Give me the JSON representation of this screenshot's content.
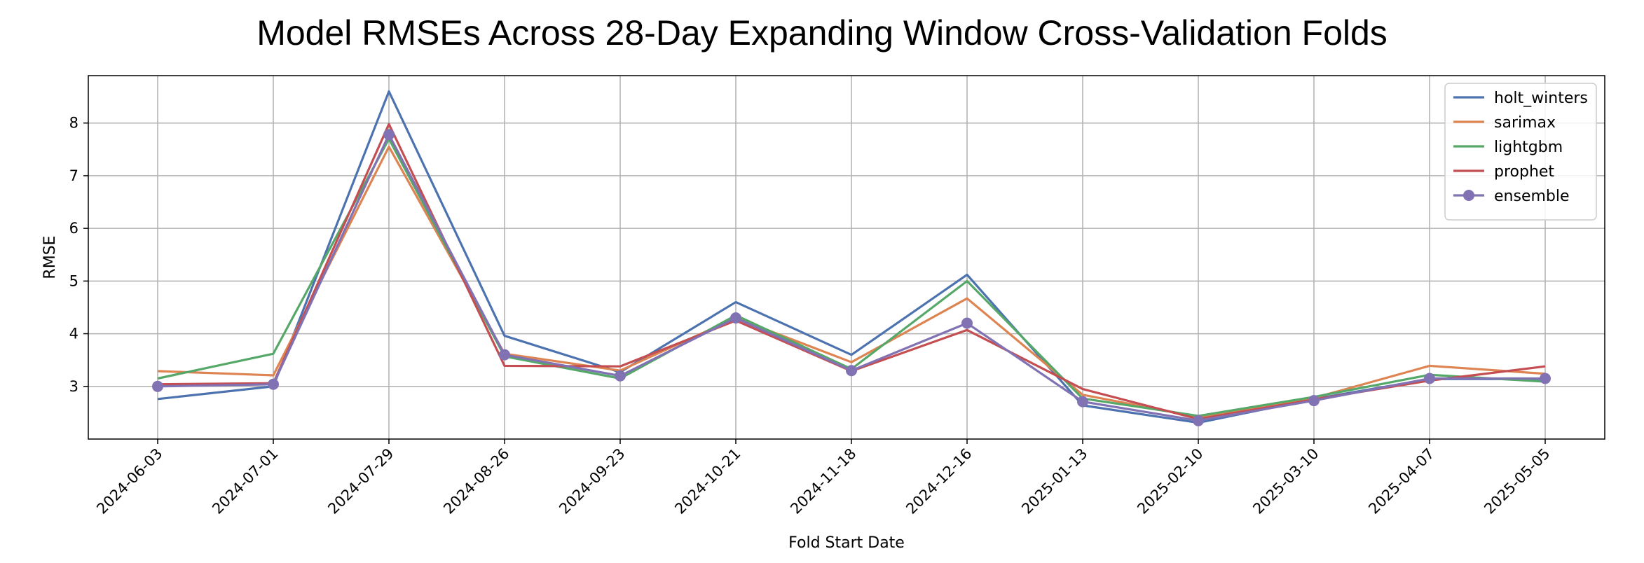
{
  "chart_data": {
    "type": "line",
    "title": "Model RMSEs Across 28-Day Expanding Window Cross-Validation Folds",
    "xlabel": "Fold Start Date",
    "ylabel": "RMSE",
    "categories": [
      "2024-06-03",
      "2024-07-01",
      "2024-07-29",
      "2024-08-26",
      "2024-09-23",
      "2024-10-21",
      "2024-11-18",
      "2024-12-16",
      "2025-01-13",
      "2025-02-10",
      "2025-03-10",
      "2025-04-07",
      "2025-05-05"
    ],
    "ylim": [
      2.0,
      8.9
    ],
    "yticks": [
      3,
      4,
      5,
      6,
      7,
      8
    ],
    "grid": true,
    "legend_position": "top-right",
    "series": [
      {
        "name": "holt_winters",
        "color": "#4c72b0",
        "marker": false,
        "values": [
          2.76,
          3.0,
          8.6,
          3.96,
          3.27,
          4.6,
          3.6,
          5.12,
          2.64,
          2.31,
          2.76,
          3.14,
          3.14
        ]
      },
      {
        "name": "sarimax",
        "color": "#dd8452",
        "marker": false,
        "values": [
          3.29,
          3.21,
          7.55,
          3.62,
          3.3,
          4.3,
          3.46,
          4.67,
          2.84,
          2.42,
          2.78,
          3.39,
          3.24
        ]
      },
      {
        "name": "lightgbm",
        "color": "#55a868",
        "marker": false,
        "values": [
          3.15,
          3.62,
          7.7,
          3.57,
          3.15,
          4.35,
          3.33,
          5.0,
          2.77,
          2.44,
          2.8,
          3.22,
          3.09
        ]
      },
      {
        "name": "prophet",
        "color": "#c44e52",
        "marker": false,
        "values": [
          3.04,
          3.06,
          7.98,
          3.39,
          3.38,
          4.25,
          3.29,
          4.07,
          2.95,
          2.38,
          2.75,
          3.11,
          3.38
        ]
      },
      {
        "name": "ensemble",
        "color": "#8172b3",
        "marker": true,
        "values": [
          3.0,
          3.04,
          7.78,
          3.6,
          3.2,
          4.3,
          3.3,
          4.2,
          2.71,
          2.35,
          2.73,
          3.15,
          3.15
        ]
      }
    ]
  }
}
